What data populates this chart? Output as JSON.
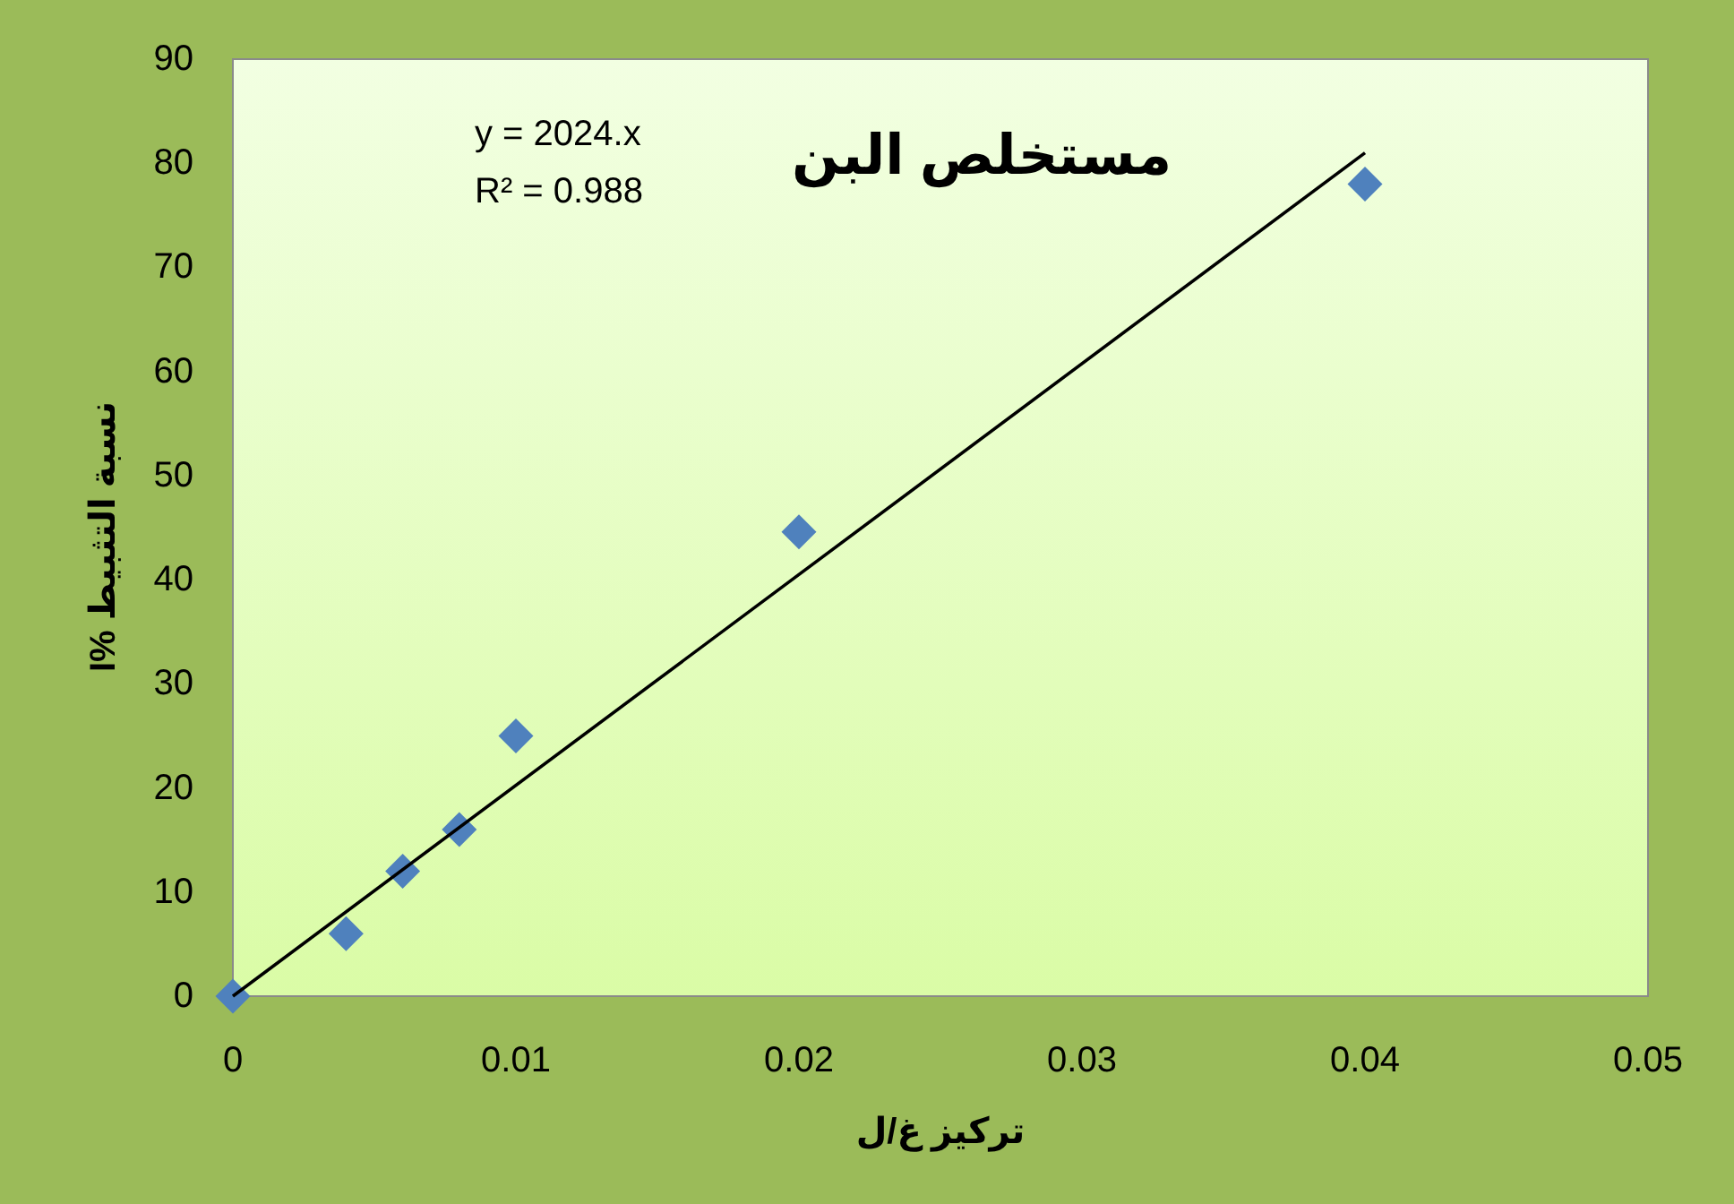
{
  "chart_data": {
    "type": "scatter",
    "title": "مستخلص البن",
    "xlabel": "تركيز غ/ل",
    "ylabel": "نسبة التثبيط %I",
    "xlim": [
      0,
      0.05
    ],
    "xticks": [
      0,
      0.01,
      0.02,
      0.03,
      0.04,
      0.05
    ],
    "ylim": [
      0,
      90
    ],
    "yticks": [
      0,
      10,
      20,
      30,
      40,
      50,
      60,
      70,
      80,
      90
    ],
    "grid": false,
    "series": [
      {
        "color": "#4f81bd",
        "marker": "diamond",
        "x": [
          0,
          0.004,
          0.006,
          0.008,
          0.01,
          0.02,
          0.04
        ],
        "values": [
          0,
          6,
          12,
          16,
          25,
          44.6,
          78
        ]
      },
      {
        "type": "line",
        "color": "#000000",
        "marker": "none",
        "line_style": "solid",
        "x": [
          0,
          0.04
        ],
        "values": [
          0,
          81
        ]
      }
    ],
    "annotations": [
      "y = 2024.x",
      "R² = 0.988"
    ]
  }
}
